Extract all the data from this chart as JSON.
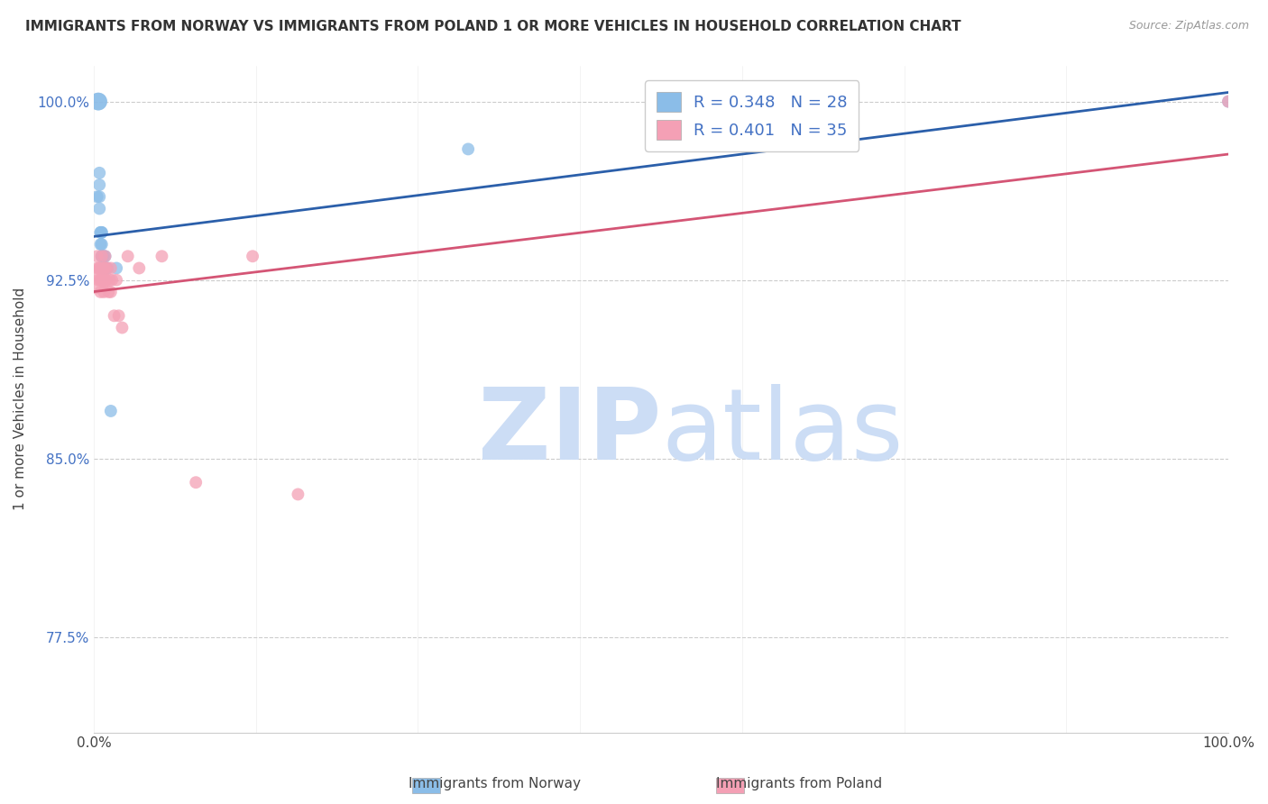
{
  "title": "IMMIGRANTS FROM NORWAY VS IMMIGRANTS FROM POLAND 1 OR MORE VEHICLES IN HOUSEHOLD CORRELATION CHART",
  "source": "Source: ZipAtlas.com",
  "ylabel": "1 or more Vehicles in Household",
  "xlim": [
    0.0,
    1.0
  ],
  "ylim": [
    0.735,
    1.015
  ],
  "yticks": [
    0.775,
    0.85,
    0.925,
    1.0
  ],
  "ytick_labels": [
    "77.5%",
    "85.0%",
    "92.5%",
    "100.0%"
  ],
  "xticks": [
    0.0,
    0.142857,
    0.285714,
    0.428571,
    0.571429,
    0.714286,
    0.857143,
    1.0
  ],
  "xtick_labels": [
    "0.0%",
    "",
    "",
    "",
    "",
    "",
    "",
    "100.0%"
  ],
  "norway_color": "#8bbde8",
  "poland_color": "#f4a0b5",
  "norway_line_color": "#2b5faa",
  "poland_line_color": "#d45575",
  "norway_R": 0.348,
  "norway_N": 28,
  "poland_R": 0.401,
  "poland_N": 35,
  "background_color": "#ffffff",
  "grid_color": "#cccccc",
  "norway_x": [
    0.003,
    0.004,
    0.004,
    0.005,
    0.005,
    0.005,
    0.005,
    0.006,
    0.006,
    0.006,
    0.007,
    0.007,
    0.007,
    0.007,
    0.007,
    0.008,
    0.008,
    0.008,
    0.009,
    0.009,
    0.01,
    0.01,
    0.011,
    0.012,
    0.015,
    0.02,
    0.33,
    1.0
  ],
  "norway_y": [
    0.96,
    1.0,
    1.0,
    0.97,
    0.965,
    0.96,
    0.955,
    0.945,
    0.945,
    0.94,
    0.945,
    0.945,
    0.94,
    0.935,
    0.935,
    0.935,
    0.93,
    0.93,
    0.935,
    0.93,
    0.935,
    0.93,
    0.93,
    0.93,
    0.87,
    0.93,
    0.98,
    1.0
  ],
  "norway_sizes": [
    100,
    200,
    200,
    100,
    100,
    100,
    100,
    100,
    100,
    100,
    100,
    100,
    100,
    100,
    100,
    100,
    100,
    100,
    100,
    100,
    100,
    100,
    100,
    100,
    100,
    100,
    100,
    100
  ],
  "poland_x": [
    0.002,
    0.003,
    0.003,
    0.004,
    0.005,
    0.005,
    0.006,
    0.006,
    0.007,
    0.007,
    0.007,
    0.008,
    0.009,
    0.009,
    0.01,
    0.01,
    0.01,
    0.011,
    0.012,
    0.013,
    0.014,
    0.015,
    0.015,
    0.016,
    0.018,
    0.02,
    0.022,
    0.025,
    0.03,
    0.04,
    0.06,
    0.09,
    0.14,
    0.18,
    1.0
  ],
  "poland_y": [
    0.925,
    0.935,
    0.93,
    0.925,
    0.93,
    0.93,
    0.925,
    0.92,
    0.935,
    0.93,
    0.925,
    0.925,
    0.93,
    0.92,
    0.935,
    0.93,
    0.925,
    0.925,
    0.93,
    0.92,
    0.925,
    0.93,
    0.92,
    0.925,
    0.91,
    0.925,
    0.91,
    0.905,
    0.935,
    0.93,
    0.935,
    0.84,
    0.935,
    0.835,
    1.0
  ],
  "poland_sizes": [
    500,
    100,
    100,
    100,
    100,
    100,
    100,
    100,
    100,
    100,
    100,
    100,
    100,
    100,
    100,
    100,
    100,
    100,
    100,
    100,
    100,
    100,
    100,
    100,
    100,
    100,
    100,
    100,
    100,
    100,
    100,
    100,
    100,
    100,
    100
  ],
  "watermark_zip_color": "#ccddf5",
  "watermark_atlas_color": "#ccddf5",
  "legend_norway": "Immigrants from Norway",
  "legend_poland": "Immigrants from Poland"
}
